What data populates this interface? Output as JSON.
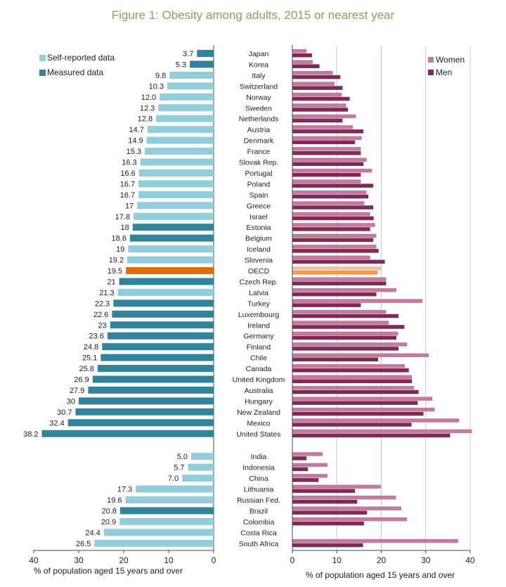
{
  "figure_title": "Figure 1: Obesity among adults, 2015 or nearest year",
  "colors": {
    "self_reported": "#92cddc",
    "measured": "#31849b",
    "oecd": "#e36c09",
    "women": "#c4799e",
    "men": "#7f2a54",
    "oecd_women": "#fac090",
    "oecd_men": "#f79646",
    "grid": "#b8cce4",
    "title": "#7fa65a"
  },
  "chart_data": [
    {
      "type": "bar",
      "orientation": "horizontal",
      "title": "",
      "xlabel": "% of population aged 15 years and over",
      "xlim": [
        40,
        0
      ],
      "xticks": [
        "40",
        "30",
        "20",
        "10",
        "0"
      ],
      "legend": [
        {
          "name": "Self-reported data",
          "color_key": "self_reported"
        },
        {
          "name": "Measured data",
          "color_key": "measured"
        }
      ],
      "legend_position": "top-left",
      "categories": [
        "Japan",
        "Korea",
        "Italy",
        "Switzerland",
        "Norway",
        "Sweden",
        "Netherlands",
        "Austria",
        "Denmark",
        "France",
        "Slovak Rep.",
        "Portugal",
        "Poland",
        "Spain",
        "Greece",
        "Israel",
        "Estonia",
        "Belgium",
        "Iceland",
        "Slovenia",
        "OECD",
        "Czech Rep.",
        "Latvia",
        "Turkey",
        "Luxembourg",
        "Ireland",
        "Germany",
        "Finland",
        "Chile",
        "Canada",
        "United Kingdom",
        "Australia",
        "Hungary",
        "New Zealand",
        "Mexico",
        "United States",
        "India",
        "Indonesia",
        "China",
        "Lithuania",
        "Russian Fed.",
        "Brazil",
        "Colombia",
        "Costa Rica",
        "South Africa"
      ],
      "values": [
        3.7,
        5.3,
        9.8,
        10.3,
        12.0,
        12.3,
        12.8,
        14.7,
        14.9,
        15.3,
        16.3,
        16.6,
        16.7,
        16.7,
        17,
        17.8,
        18,
        18.6,
        19,
        19.2,
        19.5,
        21,
        21.3,
        22.3,
        22.6,
        23,
        23.6,
        24.8,
        25.1,
        25.8,
        26.9,
        27.9,
        30,
        30.7,
        32.4,
        38.2,
        5.0,
        5.7,
        7.0,
        17.3,
        19.6,
        20.8,
        20.9,
        24.4,
        26.5
      ],
      "value_labels": [
        "3.7",
        "5.3",
        "9.8",
        "10.3",
        "12.0",
        "12.3",
        "12.8",
        "14.7",
        "14.9",
        "15.3",
        "16.3",
        "16.6",
        "16.7",
        "16.7",
        "17",
        "17.8",
        "18",
        "18.6",
        "19",
        "19.2",
        "19.5",
        "21",
        "21.3",
        "22.3",
        "22.6",
        "23",
        "23.6",
        "24.8",
        "25.1",
        "25.8",
        "26.9",
        "27.9",
        "30",
        "30.7",
        "32.4",
        "38.2",
        "5.0",
        "5.7",
        "7.0",
        "17.3",
        "19.6",
        "20.8",
        "20.9",
        "24.4",
        "26.5"
      ],
      "data_type": [
        "measured",
        "measured",
        "self_reported",
        "self_reported",
        "self_reported",
        "self_reported",
        "self_reported",
        "self_reported",
        "self_reported",
        "self_reported",
        "self_reported",
        "self_reported",
        "self_reported",
        "self_reported",
        "self_reported",
        "self_reported",
        "measured",
        "measured",
        "self_reported",
        "self_reported",
        "oecd",
        "measured",
        "self_reported",
        "measured",
        "measured",
        "measured",
        "measured",
        "measured",
        "measured",
        "measured",
        "measured",
        "measured",
        "measured",
        "measured",
        "measured",
        "measured",
        "self_reported",
        "self_reported",
        "self_reported",
        "self_reported",
        "self_reported",
        "measured",
        "self_reported",
        "self_reported",
        "self_reported"
      ]
    },
    {
      "type": "bar",
      "orientation": "horizontal",
      "title": "",
      "xlabel": "% of population aged 15 years and over",
      "xlim": [
        0,
        40
      ],
      "xticks": [
        "0",
        "10",
        "20",
        "30",
        "40"
      ],
      "grid": true,
      "legend_position": "top-right",
      "categories": [
        "Japan",
        "Korea",
        "Italy",
        "Switzerland",
        "Norway",
        "Sweden",
        "Netherlands",
        "Austria",
        "Denmark",
        "France",
        "Slovak Rep.",
        "Portugal",
        "Poland",
        "Spain",
        "Greece",
        "Israel",
        "Estonia",
        "Belgium",
        "Iceland",
        "Slovenia",
        "OECD",
        "Czech Rep.",
        "Latvia",
        "Turkey",
        "Luxembourg",
        "Ireland",
        "Germany",
        "Finland",
        "Chile",
        "Canada",
        "United Kingdom",
        "Australia",
        "Hungary",
        "New Zealand",
        "Mexico",
        "United States",
        "India",
        "Indonesia",
        "China",
        "Lithuania",
        "Russian Fed.",
        "Brazil",
        "Colombia",
        "Costa Rica",
        "South Africa"
      ],
      "series": [
        {
          "name": "Women",
          "color_key": "women",
          "values": [
            3.2,
            4.6,
            9.1,
            9.5,
            11.1,
            12.1,
            14.3,
            13.6,
            15.6,
            15.4,
            16.7,
            17.9,
            15.4,
            16.7,
            16.2,
            17.5,
            18.6,
            18.9,
            18.9,
            17.5,
            20.0,
            21.1,
            23.4,
            29.3,
            21.1,
            21.7,
            23.8,
            25.8,
            30.7,
            25.3,
            26.9,
            27.4,
            31.5,
            32.0,
            37.5,
            40.4,
            6.8,
            7.9,
            7.9,
            19.9,
            23.3,
            24.5,
            25.8,
            0.0,
            37.3
          ]
        },
        {
          "name": "Men",
          "color_key": "men",
          "values": [
            4.4,
            6.1,
            10.8,
            11.3,
            12.9,
            12.5,
            11.3,
            16.0,
            14.1,
            15.4,
            16.0,
            15.4,
            18.2,
            17.1,
            18.2,
            18.3,
            17.5,
            18.2,
            19.4,
            20.8,
            19.2,
            21.1,
            18.9,
            15.4,
            23.9,
            25.2,
            23.4,
            23.9,
            19.3,
            26.2,
            26.9,
            28.4,
            28.2,
            29.5,
            26.8,
            35.5,
            3.2,
            3.5,
            5.9,
            14.1,
            14.6,
            16.8,
            16.1,
            0.0,
            15.9
          ]
        }
      ]
    }
  ]
}
